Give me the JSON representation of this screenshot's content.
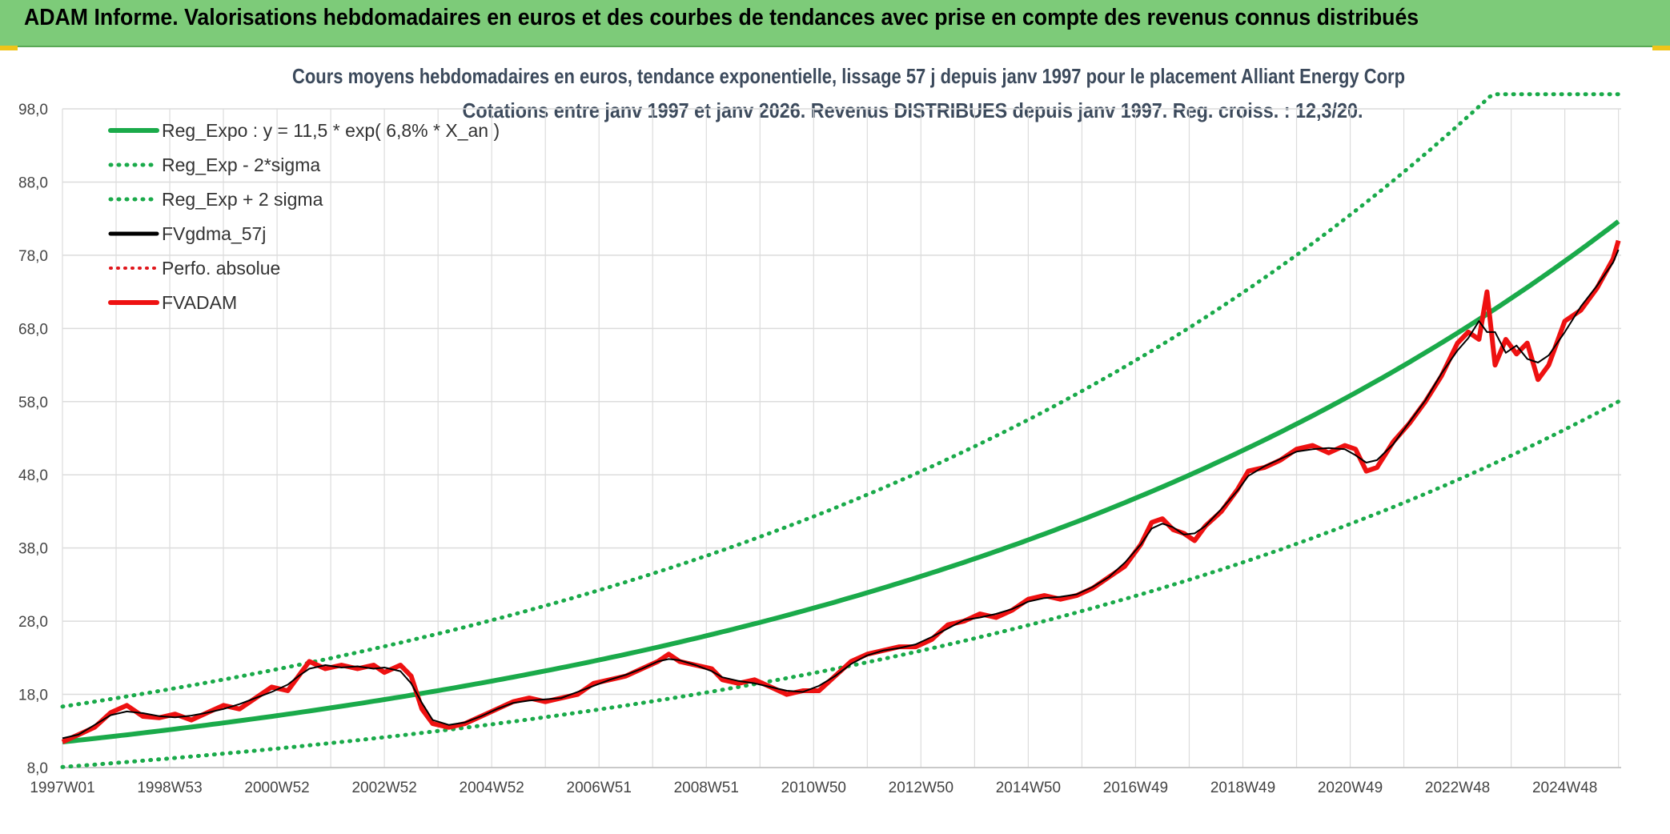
{
  "header": {
    "banner": "ADAM Informe. Valorisations hebdomadaires en euros et des courbes de tendances avec prise en compte des revenus connus distribués"
  },
  "colors": {
    "banner_bg": "#7dcb79",
    "reg_expo": "#1aaa4a",
    "sigma": "#1aaa4a",
    "fvgdma": "#000000",
    "perfo": "#e0161b",
    "fvadam": "#ee1111",
    "grid": "#dcdcdc"
  },
  "chart_data": {
    "type": "line",
    "title_line1": "Cours moyens hebdomadaires en euros, tendance exponentielle, lissage 57 j depuis janv 1997 pour le placement Alliant Energy Corp",
    "title_line2": "Cotations entre janv 1997 et janv 2026. Revenus DISTRIBUES depuis janv 1997. Reg. croiss. : 12,3/20.",
    "xlabel": "",
    "ylabel": "",
    "ylim": [
      8,
      98
    ],
    "x_range_years": [
      1997.0,
      2026.05
    ],
    "y_ticks": [
      "98,0",
      "88,0",
      "78,0",
      "68,0",
      "58,0",
      "48,0",
      "38,0",
      "28,0",
      "18,0",
      "8,0"
    ],
    "y_tick_values": [
      98,
      88,
      78,
      68,
      58,
      48,
      38,
      28,
      18,
      8
    ],
    "x_ticks": [
      "1997W01",
      "1998W53",
      "2000W52",
      "2002W52",
      "2004W52",
      "2006W51",
      "2008W51",
      "2010W50",
      "2012W50",
      "2014W50",
      "2016W49",
      "2018W49",
      "2020W49",
      "2022W48",
      "2024W48"
    ],
    "x_tick_years": [
      1997.0,
      1999.0,
      2001.0,
      2003.0,
      2005.0,
      2007.0,
      2009.0,
      2011.0,
      2013.0,
      2015.0,
      2017.0,
      2019.0,
      2021.0,
      2023.0,
      2025.0
    ],
    "regression": {
      "a": 11.5,
      "rate": 0.068,
      "sigma_factor_low": 0.702,
      "sigma_factor_high": 1.42,
      "cap": 100
    },
    "legend": [
      {
        "label": "Reg_Expo : y = 11,5 * exp( 6,8% *  X_an )",
        "style": "solid-green"
      },
      {
        "label": "Reg_Exp - 2*sigma",
        "style": "dotted-green"
      },
      {
        "label": "Reg_Exp + 2 sigma",
        "style": "dotted-green"
      },
      {
        "label": "FVgdma_57j",
        "style": "solid-black"
      },
      {
        "label": "Perfo. absolue",
        "style": "dotted-red"
      },
      {
        "label": "FVADAM",
        "style": "solid-red"
      }
    ],
    "series": [
      {
        "name": "FVADAM",
        "points": [
          [
            1997.0,
            11.5
          ],
          [
            1997.3,
            12.5
          ],
          [
            1997.6,
            13.5
          ],
          [
            1997.9,
            15.5
          ],
          [
            1998.2,
            16.5
          ],
          [
            1998.5,
            15.0
          ],
          [
            1998.8,
            14.8
          ],
          [
            1999.1,
            15.3
          ],
          [
            1999.4,
            14.5
          ],
          [
            1999.7,
            15.5
          ],
          [
            2000.0,
            16.5
          ],
          [
            2000.3,
            16.0
          ],
          [
            2000.6,
            17.5
          ],
          [
            2000.9,
            19.0
          ],
          [
            2001.2,
            18.5
          ],
          [
            2001.4,
            20.5
          ],
          [
            2001.6,
            22.5
          ],
          [
            2001.9,
            21.5
          ],
          [
            2002.2,
            22.0
          ],
          [
            2002.5,
            21.5
          ],
          [
            2002.8,
            22.0
          ],
          [
            2003.0,
            21.0
          ],
          [
            2003.3,
            22.0
          ],
          [
            2003.5,
            20.5
          ],
          [
            2003.7,
            16.0
          ],
          [
            2003.9,
            14.0
          ],
          [
            2004.2,
            13.5
          ],
          [
            2004.5,
            14.0
          ],
          [
            2004.8,
            15.0
          ],
          [
            2005.1,
            16.0
          ],
          [
            2005.4,
            17.0
          ],
          [
            2005.7,
            17.5
          ],
          [
            2006.0,
            17.0
          ],
          [
            2006.3,
            17.5
          ],
          [
            2006.6,
            18.0
          ],
          [
            2006.9,
            19.5
          ],
          [
            2007.2,
            20.0
          ],
          [
            2007.5,
            20.5
          ],
          [
            2007.8,
            21.5
          ],
          [
            2008.1,
            22.5
          ],
          [
            2008.3,
            23.5
          ],
          [
            2008.5,
            22.5
          ],
          [
            2008.8,
            22.0
          ],
          [
            2009.1,
            21.5
          ],
          [
            2009.3,
            20.0
          ],
          [
            2009.6,
            19.5
          ],
          [
            2009.9,
            20.0
          ],
          [
            2010.2,
            19.0
          ],
          [
            2010.5,
            18.0
          ],
          [
            2010.8,
            18.5
          ],
          [
            2011.1,
            18.5
          ],
          [
            2011.4,
            20.5
          ],
          [
            2011.7,
            22.5
          ],
          [
            2012.0,
            23.5
          ],
          [
            2012.3,
            24.0
          ],
          [
            2012.6,
            24.5
          ],
          [
            2012.9,
            24.5
          ],
          [
            2013.2,
            25.5
          ],
          [
            2013.5,
            27.5
          ],
          [
            2013.8,
            28.0
          ],
          [
            2014.1,
            29.0
          ],
          [
            2014.4,
            28.5
          ],
          [
            2014.7,
            29.5
          ],
          [
            2015.0,
            31.0
          ],
          [
            2015.3,
            31.5
          ],
          [
            2015.6,
            31.0
          ],
          [
            2015.9,
            31.5
          ],
          [
            2016.2,
            32.5
          ],
          [
            2016.5,
            34.0
          ],
          [
            2016.8,
            35.5
          ],
          [
            2017.1,
            38.5
          ],
          [
            2017.3,
            41.5
          ],
          [
            2017.5,
            42.0
          ],
          [
            2017.7,
            40.5
          ],
          [
            2017.9,
            40.0
          ],
          [
            2018.1,
            39.0
          ],
          [
            2018.3,
            41.0
          ],
          [
            2018.6,
            43.0
          ],
          [
            2018.9,
            46.0
          ],
          [
            2019.1,
            48.5
          ],
          [
            2019.4,
            49.0
          ],
          [
            2019.7,
            50.0
          ],
          [
            2020.0,
            51.5
          ],
          [
            2020.3,
            52.0
          ],
          [
            2020.6,
            51.0
          ],
          [
            2020.9,
            52.0
          ],
          [
            2021.1,
            51.5
          ],
          [
            2021.3,
            48.5
          ],
          [
            2021.5,
            49.0
          ],
          [
            2021.8,
            52.5
          ],
          [
            2022.1,
            55.0
          ],
          [
            2022.4,
            58.0
          ],
          [
            2022.7,
            61.5
          ],
          [
            2023.0,
            66.0
          ],
          [
            2023.2,
            67.5
          ],
          [
            2023.4,
            66.5
          ],
          [
            2023.55,
            73.0
          ],
          [
            2023.7,
            63.0
          ],
          [
            2023.9,
            66.5
          ],
          [
            2024.1,
            64.5
          ],
          [
            2024.3,
            66.0
          ],
          [
            2024.5,
            61.0
          ],
          [
            2024.7,
            63.0
          ],
          [
            2025.0,
            69.0
          ],
          [
            2025.3,
            70.5
          ],
          [
            2025.6,
            73.5
          ],
          [
            2025.9,
            77.5
          ],
          [
            2026.0,
            80.0
          ]
        ]
      }
    ]
  }
}
